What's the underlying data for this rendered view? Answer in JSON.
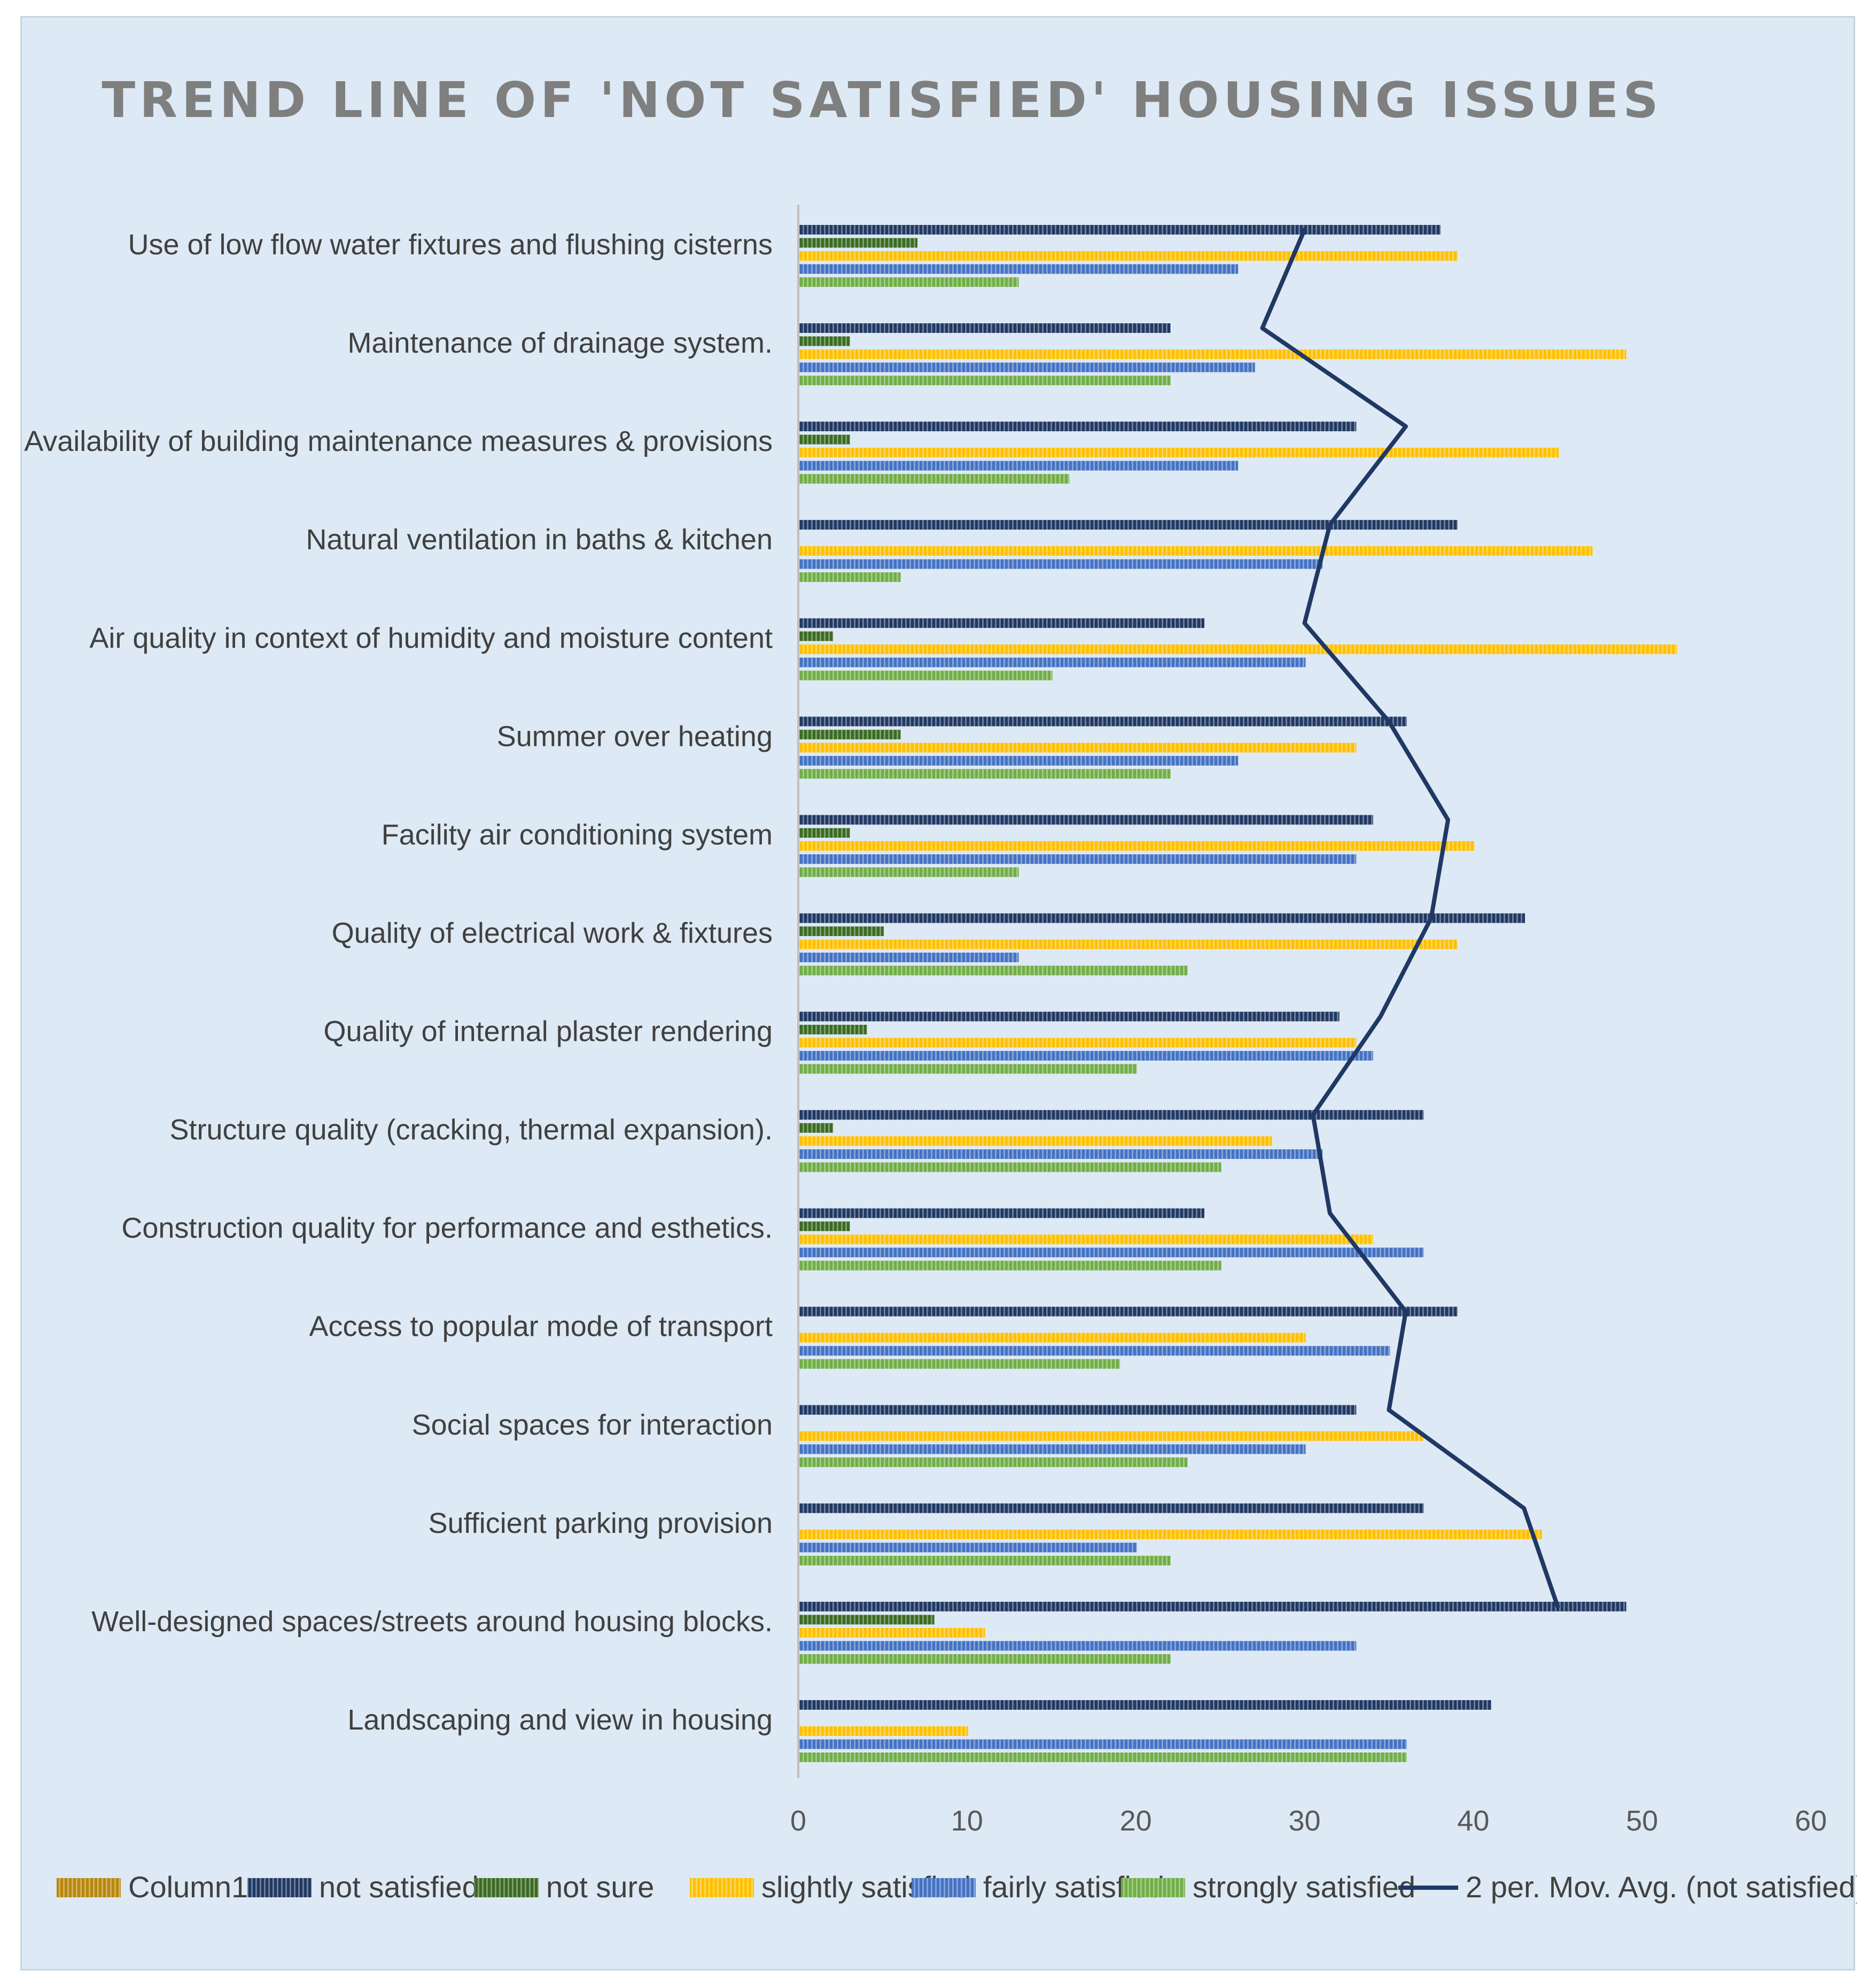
{
  "chart_data": {
    "type": "bar",
    "orientation": "horizontal",
    "title": "TREND LINE OF 'NOT SATISFIED' HOUSING ISSUES",
    "xlabel": "",
    "ylabel": "",
    "xlim": [
      0,
      60
    ],
    "xticks": [
      "0",
      "10",
      "20",
      "30",
      "40",
      "50",
      "60"
    ],
    "categories": [
      "Use of low flow water fixtures and flushing cisterns",
      "Maintenance of drainage system.",
      "Availability of building maintenance measures & provisions",
      "Natural ventilation in  baths & kitchen",
      "Air quality in context of humidity and moisture content",
      "Summer over heating",
      "Facility  air conditioning system",
      "Quality of electrical work & fixtures",
      "Quality of internal plaster rendering",
      "Structure quality (cracking, thermal expansion).",
      "Construction quality for performance and esthetics.",
      "Access to popular mode of transport",
      "Social spaces for interaction",
      "Sufficient parking provision",
      "Well-designed spaces/streets around housing blocks.",
      "Landscaping and view in housing"
    ],
    "series": [
      {
        "name": "Column1",
        "color": "#b8860b",
        "values": [
          0,
          0,
          0,
          0,
          0,
          0,
          0,
          0,
          0,
          0,
          0,
          0,
          0,
          0,
          0,
          0
        ]
      },
      {
        "name": "not satisfied",
        "color": "#203864",
        "values": [
          38,
          22,
          33,
          39,
          24,
          36,
          34,
          43,
          32,
          37,
          24,
          39,
          33,
          37,
          49,
          41
        ]
      },
      {
        "name": "not sure",
        "color": "#3a6b22",
        "values": [
          7,
          3,
          3,
          0,
          2,
          6,
          3,
          5,
          4,
          2,
          3,
          0,
          0,
          0,
          8,
          0
        ]
      },
      {
        "name": "slightly satisfied",
        "color": "#ffc000",
        "values": [
          39,
          49,
          45,
          47,
          52,
          33,
          40,
          39,
          33,
          28,
          34,
          30,
          37,
          44,
          11,
          10
        ]
      },
      {
        "name": "fairly satisfied",
        "color": "#4472c4",
        "values": [
          26,
          27,
          26,
          31,
          30,
          26,
          33,
          13,
          34,
          31,
          37,
          35,
          30,
          20,
          33,
          36
        ]
      },
      {
        "name": "strongly satisfied",
        "color": "#70ad47",
        "values": [
          13,
          22,
          16,
          6,
          15,
          22,
          13,
          23,
          20,
          25,
          25,
          19,
          23,
          22,
          22,
          36
        ]
      }
    ],
    "trendline": {
      "name": "2 per. Mov. Avg. (not satisfied)",
      "color": "#203864",
      "values": [
        30,
        27.5,
        36,
        31.5,
        30,
        35,
        38.5,
        37.5,
        34.5,
        30.5,
        31.5,
        36,
        35,
        43,
        45,
        null
      ]
    },
    "legend_position": "bottom"
  }
}
